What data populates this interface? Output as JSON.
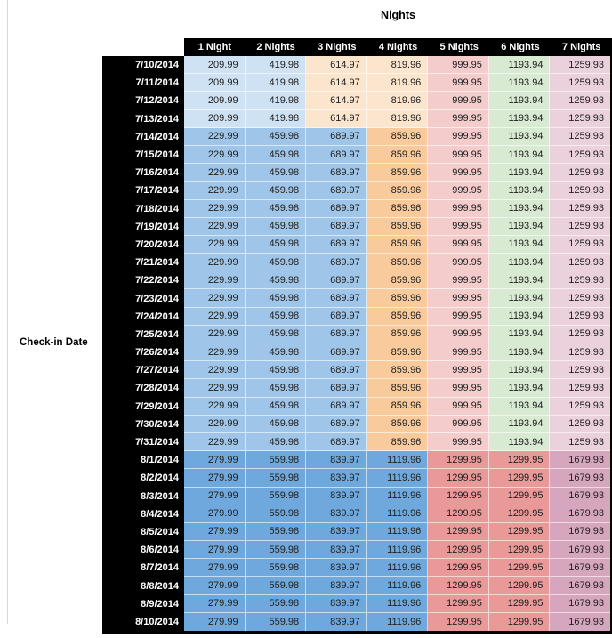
{
  "chart_data": {
    "type": "table",
    "title": "Nights",
    "row_label": "Check-in Date",
    "columns": [
      "1 Night",
      "2 Nights",
      "3 Nights",
      "4 Nights",
      "5 Nights",
      "6 Nights",
      "7 Nights"
    ],
    "bands": [
      {
        "dates": [
          "7/10/2014",
          "7/11/2014",
          "7/12/2014",
          "7/13/2014"
        ],
        "values": [
          "209.99",
          "419.98",
          "614.97",
          "819.96",
          "999.95",
          "1193.94",
          "1259.93"
        ],
        "cell_colors": [
          "light_blue_3",
          "light_blue_3",
          "light_orange_3",
          "light_orange_3",
          "light_red_3",
          "light_green_3",
          "light_magenta_3"
        ]
      },
      {
        "dates": [
          "7/14/2014",
          "7/15/2014",
          "7/16/2014",
          "7/17/2014",
          "7/18/2014",
          "7/19/2014",
          "7/20/2014",
          "7/21/2014",
          "7/22/2014",
          "7/23/2014",
          "7/24/2014",
          "7/25/2014",
          "7/26/2014",
          "7/27/2014",
          "7/28/2014",
          "7/29/2014",
          "7/30/2014",
          "7/31/2014"
        ],
        "values": [
          "229.99",
          "459.98",
          "689.97",
          "859.96",
          "999.95",
          "1193.94",
          "1259.93"
        ],
        "cell_colors": [
          "light_blue_2",
          "light_blue_2",
          "light_blue_2",
          "light_orange_2",
          "light_red_3",
          "light_green_3",
          "light_magenta_3"
        ]
      },
      {
        "dates": [
          "8/1/2014",
          "8/2/2014",
          "8/3/2014",
          "8/4/2014",
          "8/5/2014",
          "8/6/2014",
          "8/7/2014",
          "8/8/2014",
          "8/9/2014",
          "8/10/2014"
        ],
        "values": [
          "279.99",
          "559.98",
          "839.97",
          "1119.96",
          "1299.95",
          "1299.95",
          "1679.93"
        ],
        "cell_colors": [
          "light_blue_1",
          "light_blue_1",
          "light_blue_1",
          "light_blue_1",
          "light_red_2",
          "light_red_2",
          "light_magenta_1"
        ]
      }
    ]
  },
  "styles": {
    "palette": {
      "light_blue_3": "#cfe2f3",
      "light_blue_2": "#9fc5e8",
      "light_blue_1": "#6fa8dc",
      "light_orange_3": "#fce5cd",
      "light_orange_2": "#f9cb9c",
      "light_red_3": "#f4cccc",
      "light_red_2": "#ea9999",
      "light_green_3": "#d9ead3",
      "light_magenta_3": "#ead1dc",
      "light_magenta_1": "#d5a6bd"
    },
    "header_bg": "#000000",
    "header_text": "#ffffff",
    "table_border": "#000000",
    "number_color": "#212121",
    "title_color": "#000000",
    "page_gridline": "#d9d9d9"
  }
}
